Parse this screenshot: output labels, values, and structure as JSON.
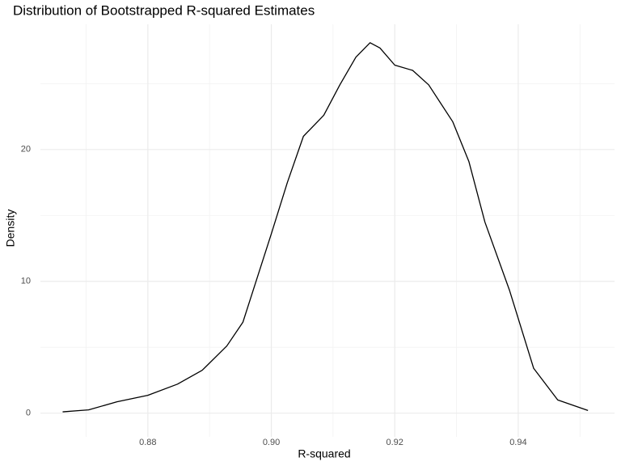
{
  "chart_data": {
    "type": "line",
    "title": "Distribution of Bootstrapped R-squared Estimates",
    "x_label": "R-squared",
    "y_label": "Density",
    "color": "#000000",
    "grid": true,
    "x": [
      0.8662,
      0.8704,
      0.875,
      0.88,
      0.8848,
      0.8888,
      0.8928,
      0.8954,
      0.9,
      0.9026,
      0.9052,
      0.9085,
      0.9111,
      0.9137,
      0.916,
      0.9176,
      0.92,
      0.9229,
      0.9255,
      0.9294,
      0.932,
      0.9346,
      0.9386,
      0.9425,
      0.9464,
      0.9513
    ],
    "values": [
      0.1,
      0.25,
      0.86,
      1.35,
      2.2,
      3.25,
      5.1,
      6.9,
      13.6,
      17.5,
      21,
      22.6,
      24.9,
      27,
      28.1,
      27.7,
      26.4,
      26,
      24.9,
      22.1,
      19.1,
      14.5,
      9.3,
      3.4,
      1.0,
      0.2
    ],
    "xlim": [
      0.8626,
      0.9556
    ],
    "ylim": [
      -1.8,
      29.5
    ],
    "xticks": [
      0.88,
      {
        "value": 0.9,
        "label": "0.90"
      },
      0.92,
      0.94
    ],
    "yticks": [
      0,
      10,
      20
    ],
    "minor_xticks": [
      0.87,
      0.89,
      0.91,
      0.93,
      0.95
    ],
    "minor_yticks": [
      5,
      15,
      25
    ]
  }
}
